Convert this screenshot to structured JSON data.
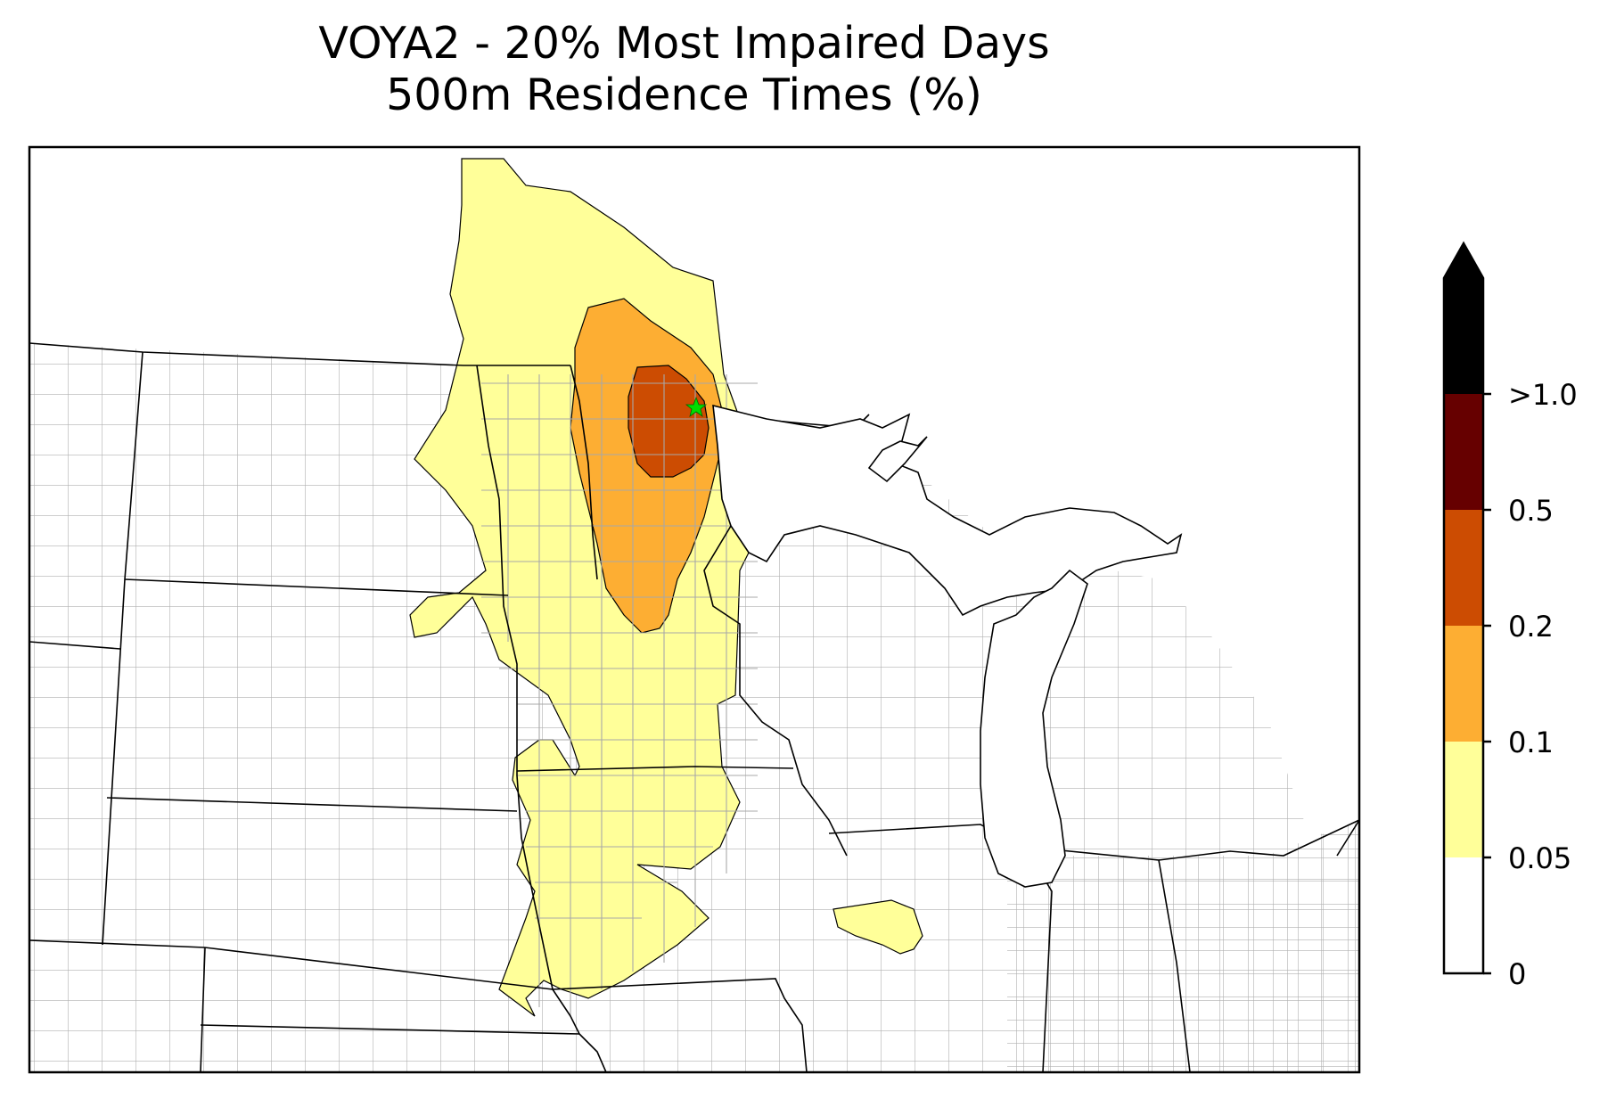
{
  "title": {
    "line1": "VOYA2 - 20% Most Impaired Days",
    "line2": "500m Residence Times (%)"
  },
  "map": {
    "site_marker": {
      "symbol": "star-icon",
      "color": "#00dd00"
    },
    "county_line_color": "#aaaaaa",
    "state_line_color": "#000000",
    "coastline_color": "#000000"
  },
  "legend": {
    "type": "colorbar",
    "orientation": "vertical",
    "extend": "max",
    "bins": [
      {
        "from": "0",
        "to": "0.05",
        "color": "#ffffff"
      },
      {
        "from": "0.05",
        "to": "0.1",
        "color": "#ffff99"
      },
      {
        "from": "0.1",
        "to": "0.2",
        "color": "#fdae33"
      },
      {
        "from": "0.2",
        "to": "0.5",
        "color": "#cc4c02"
      },
      {
        "from": "0.5",
        "to": ">1.0",
        "color": "#660000"
      },
      {
        "from": ">1.0",
        "to": "",
        "color": "#000000"
      }
    ],
    "tick_labels": [
      "0",
      "0.05",
      "0.1",
      "0.2",
      "0.5",
      ">1.0"
    ]
  }
}
